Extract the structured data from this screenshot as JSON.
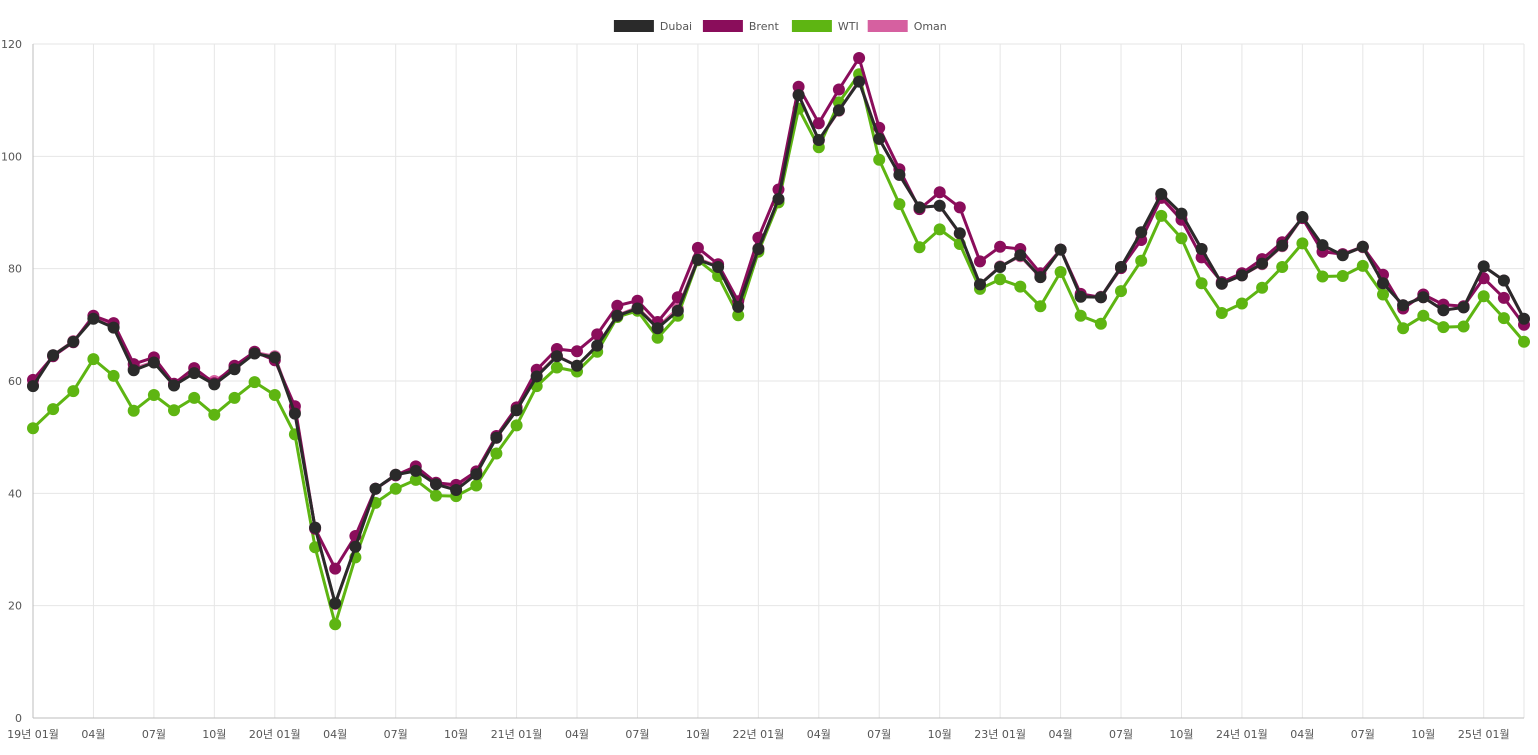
{
  "chart_data": {
    "type": "line",
    "title": "",
    "xlabel": "",
    "ylabel": "",
    "ylim": [
      0,
      120
    ],
    "yticks": [
      0,
      20,
      40,
      60,
      80,
      100,
      120
    ],
    "grid": true,
    "legend_position": "top-center",
    "x_tick_labels": [
      "19년 01월",
      "04월",
      "07월",
      "10월",
      "20년 01월",
      "04월",
      "07월",
      "10월",
      "21년 01월",
      "04월",
      "07월",
      "10월",
      "22년 01월",
      "04월",
      "07월",
      "10월",
      "23년 01월",
      "04월",
      "07월",
      "10월",
      "24년 01월",
      "04월",
      "07월",
      "10월",
      "25년 01월"
    ],
    "x_tick_every": 3,
    "num_points": 75,
    "series": [
      {
        "name": "Oman",
        "color": "#d660a0",
        "values": [
          59.3,
          64.6,
          67.1,
          71.2,
          69.7,
          62.2,
          63.4,
          59.3,
          61.5,
          60.0,
          62.3,
          65.1,
          64.4,
          54.6,
          33.9,
          20.3,
          30.5,
          40.8,
          43.3,
          44.1,
          41.8,
          40.8,
          43.5,
          49.9,
          54.8,
          61.0,
          64.5,
          62.7,
          66.2,
          71.7,
          73.1,
          69.6,
          72.9,
          81.8,
          80.4,
          73.3,
          83.6,
          92.2,
          111.0,
          102.8,
          108.1,
          113.5,
          103.1,
          96.7,
          90.9,
          91.2,
          86.2,
          77.2,
          80.4,
          82.2,
          78.5,
          83.4,
          75.2,
          75.0,
          80.3,
          86.4,
          93.2,
          89.6,
          83.5,
          77.3,
          78.8,
          80.8,
          84.0,
          89.1,
          83.9,
          82.5,
          83.8,
          77.5,
          73.5,
          74.9,
          72.6,
          73.1,
          80.4,
          77.9,
          71.0
        ]
      },
      {
        "name": "WTI",
        "color": "#5eb512",
        "values": [
          51.6,
          55.0,
          58.2,
          63.9,
          60.9,
          54.7,
          57.5,
          54.8,
          57.0,
          54.0,
          57.0,
          59.8,
          57.5,
          50.5,
          30.4,
          16.7,
          28.6,
          38.3,
          40.8,
          42.4,
          39.6,
          39.5,
          41.4,
          47.1,
          52.1,
          59.1,
          62.4,
          61.7,
          65.2,
          71.4,
          72.5,
          67.7,
          71.6,
          81.5,
          78.7,
          71.7,
          83.0,
          91.8,
          108.5,
          101.6,
          109.6,
          114.6,
          99.4,
          91.5,
          83.8,
          87.0,
          84.4,
          76.4,
          78.1,
          76.8,
          73.3,
          79.4,
          71.6,
          70.2,
          76.0,
          81.4,
          89.4,
          85.4,
          77.4,
          72.1,
          73.8,
          76.6,
          80.3,
          84.5,
          78.6,
          78.7,
          80.5,
          75.4,
          69.4,
          71.6,
          69.6,
          69.7,
          75.1,
          71.2,
          67.0
        ]
      },
      {
        "name": "Brent",
        "color": "#8a0d5b",
        "values": [
          60.2,
          64.4,
          66.9,
          71.6,
          70.3,
          63.0,
          64.2,
          59.5,
          62.3,
          59.6,
          62.7,
          65.2,
          63.7,
          55.5,
          33.7,
          26.6,
          32.4,
          40.8,
          43.2,
          44.8,
          41.9,
          41.5,
          43.9,
          50.2,
          55.3,
          62.0,
          65.7,
          65.3,
          68.3,
          73.4,
          74.3,
          70.5,
          74.9,
          83.7,
          80.8,
          74.2,
          85.5,
          94.1,
          112.4,
          105.9,
          111.9,
          117.5,
          105.1,
          97.7,
          90.6,
          93.6,
          90.9,
          81.3,
          83.9,
          83.5,
          79.2,
          83.4,
          75.5,
          74.9,
          80.1,
          85.1,
          92.6,
          88.7,
          82.0,
          77.6,
          79.2,
          81.7,
          84.7,
          89.0,
          83.0,
          82.6,
          83.9,
          78.9,
          72.9,
          75.4,
          73.6,
          73.3,
          78.3,
          74.8,
          70.0
        ]
      },
      {
        "name": "Dubai",
        "color": "#2a2a2a",
        "values": [
          59.1,
          64.6,
          67.0,
          71.1,
          69.5,
          61.9,
          63.3,
          59.2,
          61.4,
          59.4,
          62.1,
          64.9,
          64.2,
          54.2,
          33.9,
          20.4,
          30.5,
          40.8,
          43.3,
          44.0,
          41.6,
          40.6,
          43.4,
          49.9,
          54.8,
          60.8,
          64.4,
          62.7,
          66.3,
          71.6,
          72.9,
          69.4,
          72.5,
          81.6,
          80.3,
          73.2,
          83.5,
          92.4,
          110.9,
          102.9,
          108.2,
          113.3,
          103.1,
          96.7,
          90.9,
          91.2,
          86.3,
          77.2,
          80.3,
          82.4,
          78.5,
          83.4,
          75.0,
          74.9,
          80.3,
          86.5,
          93.3,
          89.8,
          83.5,
          77.3,
          78.8,
          80.9,
          84.1,
          89.2,
          84.2,
          82.4,
          83.9,
          77.4,
          73.5,
          74.9,
          72.6,
          73.1,
          80.4,
          77.9,
          71.1
        ]
      }
    ],
    "legend": [
      {
        "name": "Dubai",
        "color": "#2a2a2a"
      },
      {
        "name": "Brent",
        "color": "#8a0d5b"
      },
      {
        "name": "WTI",
        "color": "#5eb512"
      },
      {
        "name": "Oman",
        "color": "#d660a0"
      }
    ]
  }
}
